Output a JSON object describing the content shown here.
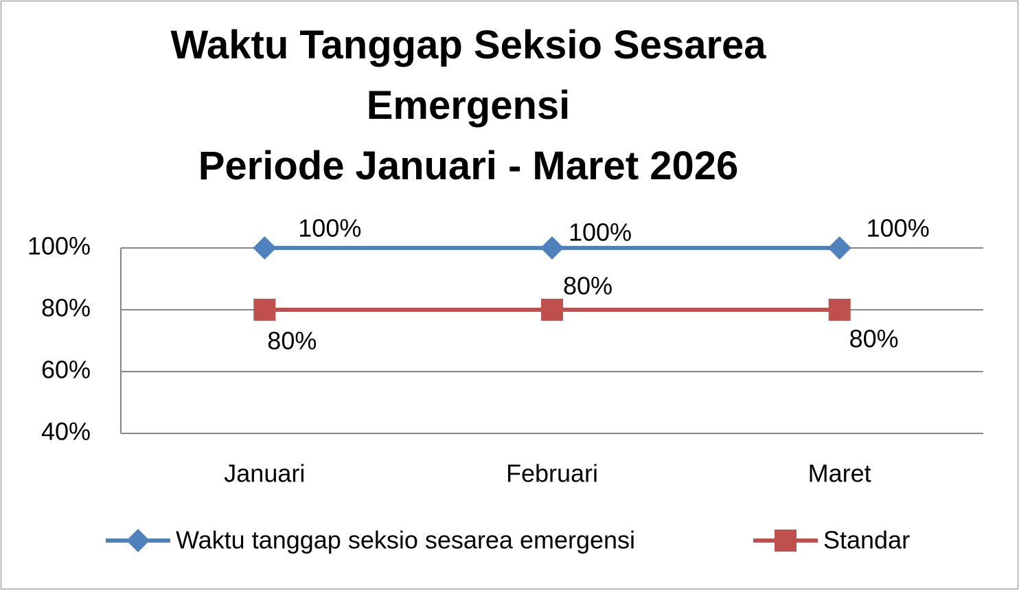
{
  "chart_data": {
    "type": "line",
    "title": "Waktu Tanggap Seksio Sesarea Emergensi",
    "subtitle": "Periode Januari - Maret 2026",
    "categories": [
      "Januari",
      "Februari",
      "Maret"
    ],
    "series": [
      {
        "name": "Waktu tanggap seksio sesarea emergensi",
        "color": "#4f81bd",
        "marker": "diamond",
        "values": [
          100,
          100,
          100
        ],
        "value_labels": [
          "100%",
          "100%",
          "100%"
        ]
      },
      {
        "name": "Standar",
        "color": "#c0504d",
        "marker": "square",
        "values": [
          80,
          80,
          80
        ],
        "value_labels": [
          "80%",
          "80%",
          "80%"
        ]
      }
    ],
    "ylim": [
      40,
      100
    ],
    "yticks": [
      {
        "value": 40,
        "label": "40%"
      },
      {
        "value": 60,
        "label": "60%"
      },
      {
        "value": 80,
        "label": "80%"
      },
      {
        "value": 100,
        "label": "100%"
      }
    ],
    "grid": true,
    "legend": "bottom"
  }
}
